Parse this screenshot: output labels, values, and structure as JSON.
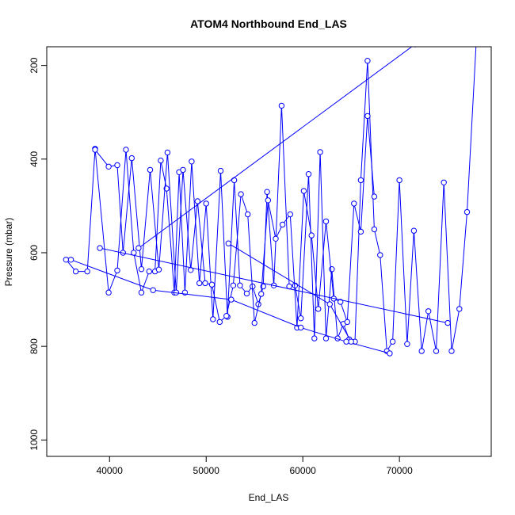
{
  "chart_data": {
    "type": "line",
    "title": "ATOM4 Northbound End_LAS",
    "xlabel": "End_LAS",
    "ylabel": "Pressure (mbar)",
    "xlim": [
      33500,
      79500
    ],
    "ylim": [
      1035,
      160
    ],
    "x_ticks": [
      40000,
      50000,
      60000,
      70000
    ],
    "y_ticks": [
      200,
      400,
      600,
      800,
      1000
    ],
    "grid": false,
    "legend": "none",
    "color": "#0000ff",
    "series": [
      {
        "x": [
          35500,
          36500,
          37700,
          38500,
          39900,
          40800,
          41700,
          42500,
          43300,
          44100,
          44700,
          45300,
          45900,
          46700,
          47200,
          47800,
          48500,
          49300,
          50000,
          50700,
          51500,
          52200,
          52900,
          53500,
          54200,
          54800,
          55400,
          55900,
          56300,
          57000,
          57800,
          58600,
          59200,
          59800,
          60600,
          61200,
          61800,
          62400,
          63000,
          63600,
          64200,
          64800,
          65400,
          66000,
          66700,
          67400,
          68000,
          68700,
          69300,
          70000,
          70800,
          71500,
          72300,
          73000,
          73800,
          74600,
          75400,
          76200,
          77000,
          78000
        ],
        "y": [
          615,
          640,
          640,
          378,
          685,
          638,
          380,
          600,
          685,
          640,
          640,
          403,
          463,
          685,
          428,
          685,
          405,
          665,
          495,
          742,
          425,
          737,
          445,
          670,
          687,
          672,
          710,
          672,
          470,
          670,
          286,
          672,
          670,
          740,
          432,
          783,
          385,
          783,
          635,
          783,
          752,
          785,
          790,
          445,
          190,
          550,
          605,
          810,
          790,
          445,
          795,
          553,
          810,
          725,
          810,
          450,
          810,
          720,
          513,
          130
        ]
      },
      {
        "x": [
          38500,
          39900,
          40800,
          41400,
          42300,
          43300,
          44200,
          45100,
          46000,
          46900,
          47600,
          48400,
          49100,
          49900,
          50600,
          51400,
          52100,
          52800,
          53600,
          54300,
          55000,
          55700,
          56400,
          57200,
          57900,
          58700,
          59400,
          60100,
          60900,
          61600,
          62400,
          63200,
          63900,
          64600,
          65300,
          66000,
          66700,
          67400
        ],
        "y": [
          380,
          416,
          413,
          600,
          398,
          635,
          423,
          636,
          386,
          685,
          423,
          637,
          490,
          665,
          668,
          748,
          735,
          670,
          475,
          518,
          750,
          688,
          488,
          570,
          540,
          518,
          760,
          468,
          563,
          720,
          533,
          698,
          705,
          748,
          495,
          555,
          308,
          480
        ]
      },
      {
        "x": [
          36000,
          44500,
          52600,
          59800,
          64500,
          69000
        ],
        "y": [
          615,
          680,
          700,
          760,
          790,
          815
        ]
      },
      {
        "x": [
          39000,
          75000
        ],
        "y": [
          590,
          750
        ]
      },
      {
        "x": [
          43000,
          71600
        ],
        "y": [
          590,
          155
        ]
      },
      {
        "x": [
          52300,
          62800,
          65000
        ],
        "y": [
          580,
          710,
          790
        ]
      }
    ]
  }
}
